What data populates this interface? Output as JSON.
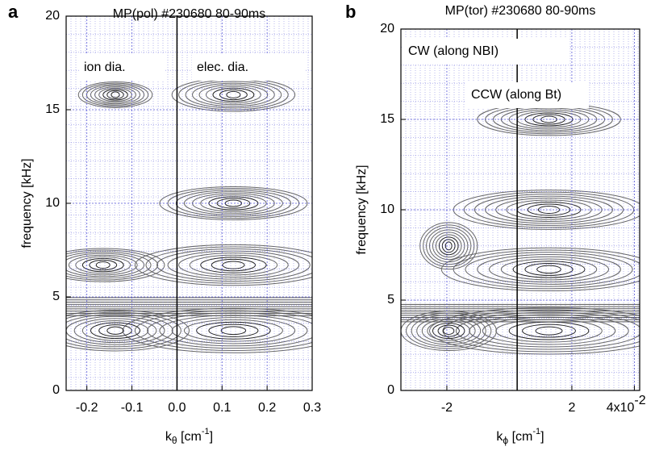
{
  "chart_data": [
    {
      "type": "contour",
      "panel": "a",
      "title": "MP(pol) #230680 80-90ms",
      "xlabel": [
        "k",
        "θ",
        " [cm",
        "-1",
        "]"
      ],
      "ylabel": "frequency [kHz]",
      "xlim": [
        -0.246,
        0.3
      ],
      "ylim": [
        0,
        20
      ],
      "xticks": [
        -0.2,
        -0.1,
        {
          "value": 0,
          "label": "0.0"
        },
        0.1,
        0.2,
        0.3
      ],
      "yticks": [
        0,
        5,
        10,
        15,
        20
      ],
      "vline": 0,
      "grid": true,
      "grid_color": "#5a5ad8",
      "annotations": [
        "ion dia.",
        "elec. dia."
      ]
    },
    {
      "type": "contour",
      "panel": "b",
      "title": "MP(tor) #230680 80-90ms",
      "xlabel": [
        "k",
        "ϕ",
        " [cm",
        "-1",
        "]"
      ],
      "ylabel": "frequency [kHz]",
      "xlim": [
        -3.47,
        4.17
      ],
      "ylim": [
        0,
        20
      ],
      "xticks": [
        -2,
        2,
        {
          "value": 4,
          "label": "4x10"
        }
      ],
      "xtick_exponent": "-2",
      "yticks": [
        0,
        5,
        10,
        15,
        20
      ],
      "vline": 0.25,
      "grid": true,
      "grid_color": "#5a5ad8",
      "annotations": [
        "CW (along NBI)",
        "CCW (along Bt)"
      ]
    }
  ]
}
